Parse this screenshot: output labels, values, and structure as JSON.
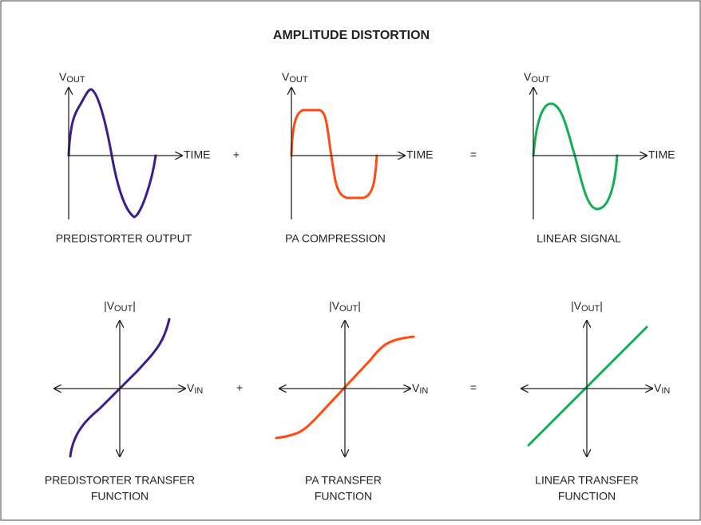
{
  "title": "AMPLITUDE DISTORTION",
  "top": [
    {
      "y_label": [
        {
          "text": "V"
        },
        {
          "text": "OUT",
          "sub": true
        }
      ],
      "x_label": "TIME",
      "caption": [
        "PREDISTORTER OUTPUT"
      ]
    },
    {
      "y_label": [
        {
          "text": "V"
        },
        {
          "text": "OUT",
          "sub": true
        }
      ],
      "x_label": "TIME",
      "caption": [
        "PA COMPRESSION"
      ]
    },
    {
      "y_label": [
        {
          "text": "V"
        },
        {
          "text": "OUT",
          "sub": true
        }
      ],
      "x_label": "TIME",
      "caption": [
        "LINEAR SIGNAL"
      ]
    }
  ],
  "top_operators": [
    "+",
    "="
  ],
  "bottom": [
    {
      "y_label": [
        {
          "text": "|V"
        },
        {
          "text": "OUT",
          "sub": true
        },
        {
          "text": "|"
        }
      ],
      "x_label": [
        {
          "text": "V"
        },
        {
          "text": "IN",
          "sub": true
        }
      ],
      "caption": [
        "PREDISTORTER TRANSFER",
        "FUNCTION"
      ]
    },
    {
      "y_label": [
        {
          "text": "|V"
        },
        {
          "text": "OUT",
          "sub": true
        },
        {
          "text": "|"
        }
      ],
      "x_label": [
        {
          "text": "V"
        },
        {
          "text": "IN",
          "sub": true
        }
      ],
      "caption": [
        "PA TRANSFER",
        "FUNCTION"
      ]
    },
    {
      "y_label": [
        {
          "text": "|V"
        },
        {
          "text": "OUT",
          "sub": true
        },
        {
          "text": "|"
        }
      ],
      "x_label": [
        {
          "text": "V"
        },
        {
          "text": "IN",
          "sub": true
        }
      ],
      "caption": [
        "LINEAR TRANSFER",
        "FUNCTION"
      ]
    }
  ],
  "bottom_operators": [
    "+",
    "="
  ]
}
